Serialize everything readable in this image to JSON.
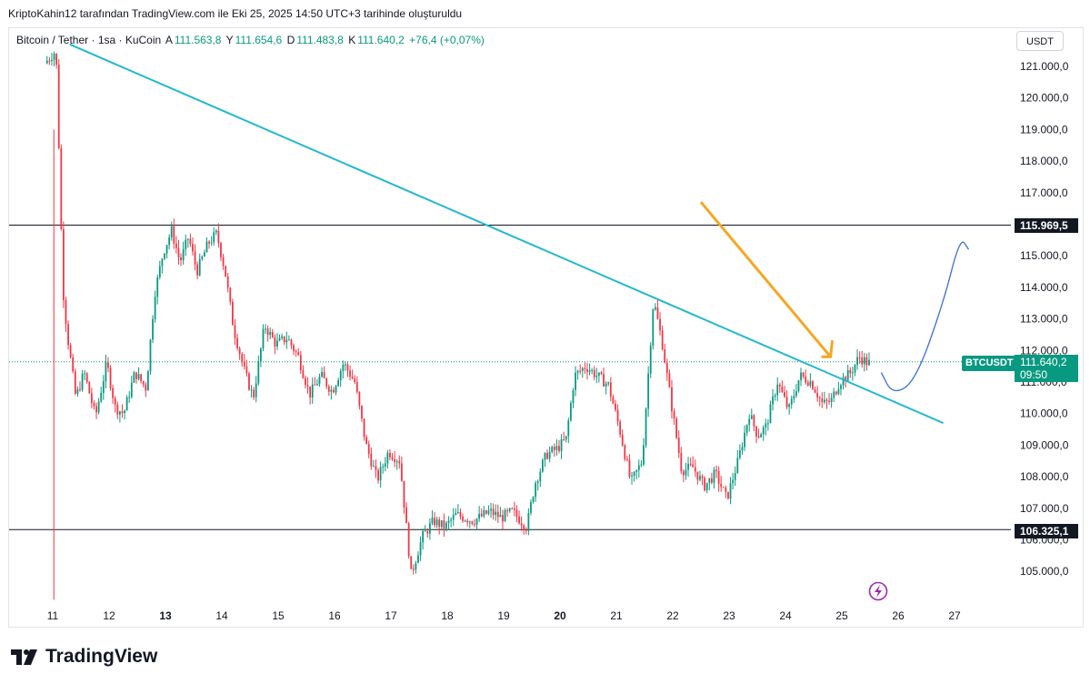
{
  "caption": "KriptoKahin12 tarafından TradingView.com ile Eki 25, 2025 14:50 UTC+3 tarihinde oluşturuldu",
  "legend": {
    "symbol": "Bitcoin / Tether · 1sa · KuCoin",
    "open_label": "A",
    "open": "111.563,8",
    "high_label": "Y",
    "high": "111.654,6",
    "low_label": "D",
    "low": "111.483,8",
    "close_label": "K",
    "close": "111.640,2",
    "change": "+76,4 (+0,07%)"
  },
  "currency": "USDT",
  "price_tag": {
    "symbol": "BTCUSDT",
    "price": "111.640,2",
    "countdown": "09:50"
  },
  "level_tags": {
    "resistance": "115.969,5",
    "support": "106.325,1"
  },
  "brand": "TradingView",
  "colors": {
    "up": "#089981",
    "down": "#f23645",
    "trendline": "#22b8cf",
    "arrow": "#f5a623",
    "projection": "#3b6fd4"
  },
  "chart_data": {
    "type": "candlestick",
    "ylim": [
      104000,
      121800
    ],
    "xlim": [
      10.9,
      27.4
    ],
    "y_ticks": [
      "121.000,0",
      "120.000,0",
      "119.000,0",
      "118.000,0",
      "117.000,0",
      "115.000,0",
      "114.000,0",
      "113.000,0",
      "112.000,0",
      "111.000,0",
      "110.000,0",
      "109.000,0",
      "108.000,0",
      "107.000,0",
      "106.000,0",
      "105.000,0"
    ],
    "y_tick_values": [
      121000,
      120000,
      119000,
      118000,
      117000,
      115000,
      114000,
      113000,
      112000,
      111000,
      110000,
      109000,
      108000,
      107000,
      106000,
      105000
    ],
    "x_ticks": [
      "11",
      "12",
      "13",
      "14",
      "15",
      "16",
      "17",
      "18",
      "19",
      "20",
      "21",
      "22",
      "23",
      "24",
      "25",
      "26",
      "27"
    ],
    "x_tick_values": [
      11,
      12,
      13,
      14,
      15,
      16,
      17,
      18,
      19,
      20,
      21,
      22,
      23,
      24,
      25,
      26,
      27
    ],
    "x_bold_ticks": [
      "13",
      "20"
    ],
    "horizontal_levels": [
      115969.5,
      106325.1
    ],
    "current_price": 111640.2,
    "trendline": [
      [
        11.3,
        121700
      ],
      [
        26.8,
        109700
      ]
    ],
    "arrow": [
      [
        22.5,
        116700
      ],
      [
        24.8,
        111800
      ]
    ],
    "projection": [
      [
        25.7,
        111300
      ],
      [
        25.9,
        110600
      ],
      [
        26.3,
        111000
      ],
      [
        26.8,
        113500
      ],
      [
        27.1,
        115600
      ],
      [
        27.25,
        115200
      ]
    ],
    "price_path": [
      [
        10.9,
        121100
      ],
      [
        11.0,
        121300
      ],
      [
        11.1,
        121500
      ],
      [
        11.15,
        118500
      ],
      [
        11.22,
        114000
      ],
      [
        11.3,
        112500
      ],
      [
        11.45,
        110500
      ],
      [
        11.6,
        111300
      ],
      [
        11.8,
        109900
      ],
      [
        12.0,
        111600
      ],
      [
        12.15,
        110200
      ],
      [
        12.3,
        110000
      ],
      [
        12.5,
        111300
      ],
      [
        12.7,
        110800
      ],
      [
        12.85,
        113800
      ],
      [
        13.0,
        115100
      ],
      [
        13.15,
        115800
      ],
      [
        13.3,
        114800
      ],
      [
        13.45,
        115600
      ],
      [
        13.6,
        114500
      ],
      [
        13.8,
        115400
      ],
      [
        13.95,
        115700
      ],
      [
        14.1,
        114500
      ],
      [
        14.25,
        112700
      ],
      [
        14.45,
        111300
      ],
      [
        14.6,
        110500
      ],
      [
        14.8,
        112800
      ],
      [
        15.0,
        112200
      ],
      [
        15.2,
        112400
      ],
      [
        15.4,
        111800
      ],
      [
        15.6,
        110600
      ],
      [
        15.8,
        111200
      ],
      [
        16.0,
        110700
      ],
      [
        16.2,
        111600
      ],
      [
        16.4,
        111000
      ],
      [
        16.6,
        109000
      ],
      [
        16.8,
        107900
      ],
      [
        17.0,
        108800
      ],
      [
        17.2,
        108500
      ],
      [
        17.4,
        104900
      ],
      [
        17.6,
        106100
      ],
      [
        17.8,
        106600
      ],
      [
        18.0,
        106400
      ],
      [
        18.2,
        106800
      ],
      [
        18.5,
        106600
      ],
      [
        18.8,
        106900
      ],
      [
        19.0,
        106700
      ],
      [
        19.2,
        106900
      ],
      [
        19.45,
        106400
      ],
      [
        19.6,
        107800
      ],
      [
        19.8,
        108700
      ],
      [
        20.0,
        108900
      ],
      [
        20.15,
        109200
      ],
      [
        20.3,
        111200
      ],
      [
        20.5,
        111500
      ],
      [
        20.7,
        111200
      ],
      [
        20.9,
        110900
      ],
      [
        21.1,
        109500
      ],
      [
        21.3,
        107800
      ],
      [
        21.5,
        108500
      ],
      [
        21.7,
        113600
      ],
      [
        21.85,
        112300
      ],
      [
        22.0,
        110500
      ],
      [
        22.2,
        108200
      ],
      [
        22.4,
        108300
      ],
      [
        22.6,
        107700
      ],
      [
        22.8,
        108100
      ],
      [
        23.0,
        107300
      ],
      [
        23.2,
        108500
      ],
      [
        23.4,
        110000
      ],
      [
        23.55,
        109300
      ],
      [
        23.7,
        109600
      ],
      [
        23.9,
        111000
      ],
      [
        24.1,
        110100
      ],
      [
        24.3,
        111200
      ],
      [
        24.5,
        111000
      ],
      [
        24.7,
        110300
      ],
      [
        24.85,
        110400
      ],
      [
        25.0,
        111000
      ],
      [
        25.2,
        111300
      ],
      [
        25.35,
        111800
      ],
      [
        25.5,
        111600
      ]
    ]
  }
}
